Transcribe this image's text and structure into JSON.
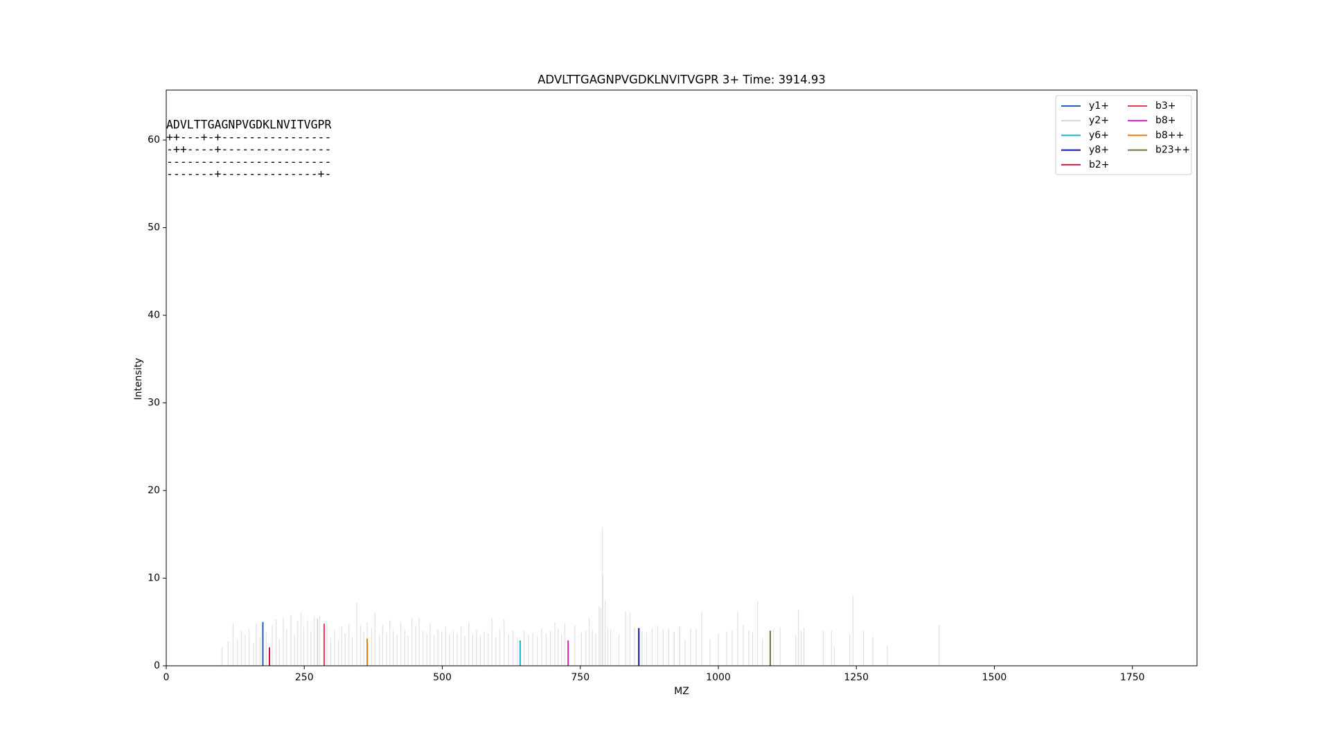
{
  "chart_data": {
    "type": "spectrum",
    "title": "ADVLTTGAGNPVGDKLNVITVGPR  3+ Time: 3914.93",
    "x_label": "MZ",
    "y_label": "Intensity",
    "xlim": [
      0,
      1867
    ],
    "ylim": [
      0,
      65.7
    ],
    "xticks": [
      0,
      250,
      500,
      750,
      1000,
      1250,
      1500,
      1750
    ],
    "yticks": [
      0,
      10,
      20,
      30,
      40,
      50,
      60
    ],
    "legend": "upper right",
    "annotation": [
      "ADVLTTGAGNPVGDKLNVITVGPR",
      "++---+-+----------------",
      "-++----+----------------",
      "------------------------",
      "-------+--------------+-"
    ],
    "peaks": {
      "color": "#e2e2e2",
      "x": [
        101,
        112,
        121,
        129,
        136,
        143,
        150,
        158,
        163,
        170,
        181,
        192,
        199,
        205,
        212,
        218,
        226,
        232,
        238,
        244,
        249,
        256,
        262,
        268,
        278,
        291,
        298,
        305,
        312,
        318,
        324,
        331,
        337,
        345,
        352,
        358,
        364,
        372,
        378,
        386,
        392,
        399,
        405,
        411,
        418,
        425,
        432,
        438,
        445,
        452,
        458,
        465,
        472,
        478,
        485,
        492,
        499,
        506,
        513,
        520,
        527,
        534,
        541,
        548,
        555,
        562,
        569,
        576,
        583,
        590,
        597,
        604,
        612,
        620,
        628,
        636,
        648,
        656,
        664,
        672,
        680,
        688,
        696,
        704,
        710,
        716,
        722,
        740,
        752,
        760,
        766,
        772,
        778,
        784,
        787,
        790,
        791,
        795,
        800,
        805,
        820,
        832,
        840,
        848,
        862,
        870,
        880,
        890,
        900,
        910,
        920,
        930,
        940,
        950,
        960,
        970,
        985,
        1000,
        1015,
        1025,
        1035,
        1045,
        1055,
        1062,
        1071,
        1080,
        1100,
        1112,
        1140,
        1145,
        1150,
        1155,
        1190,
        1205,
        1210,
        1238,
        1244,
        1263,
        1280,
        1306,
        1400
      ],
      "values": [
        2.1,
        2.8,
        4.9,
        3.0,
        4.0,
        3.5,
        4.2,
        2.6,
        4.8,
        3.3,
        3.8,
        4.6,
        5.3,
        3.1,
        5.5,
        4.2,
        5.8,
        3.6,
        5.1,
        6.0,
        4.4,
        5.2,
        3.9,
        5.6,
        5.7,
        4.9,
        3.2,
        4.1,
        3.0,
        4.5,
        3.7,
        4.8,
        3.3,
        7.2,
        4.6,
        3.9,
        5.0,
        4.3,
        6.0,
        3.5,
        4.7,
        3.8,
        5.2,
        4.0,
        3.6,
        5.0,
        4.1,
        3.4,
        5.4,
        4.6,
        5.5,
        4.0,
        3.7,
        4.9,
        3.5,
        4.2,
        3.9,
        4.4,
        3.6,
        4.0,
        3.8,
        4.5,
        3.4,
        5.0,
        3.6,
        4.1,
        3.5,
        3.9,
        3.7,
        5.4,
        3.3,
        4.2,
        5.3,
        3.6,
        4.0,
        3.2,
        4.0,
        3.5,
        3.8,
        3.4,
        4.3,
        3.7,
        4.0,
        5.0,
        4.2,
        3.6,
        4.9,
        4.6,
        3.8,
        4.0,
        5.5,
        4.1,
        3.7,
        6.8,
        6.6,
        15.8,
        10.4,
        7.4,
        4.3,
        4.1,
        3.5,
        6.2,
        6.0,
        4.4,
        4.0,
        3.8,
        4.3,
        4.6,
        4.2,
        4.3,
        3.9,
        4.5,
        3.0,
        4.3,
        4.2,
        6.2,
        3.1,
        3.7,
        3.9,
        4.1,
        6.2,
        4.7,
        4.0,
        3.8,
        7.4,
        3.1,
        4.2,
        4.3,
        3.5,
        6.4,
        4.0,
        4.4,
        4.0,
        4.0,
        2.2,
        3.6,
        8.0,
        4.0,
        3.3,
        2.3,
        4.7
      ]
    },
    "series": [
      {
        "name": "y1+",
        "color": "#1f5fbf",
        "x": [
          175
        ],
        "values": [
          5.0
        ]
      },
      {
        "name": "y2+",
        "color": "#cfd8dc",
        "x": [
          274
        ],
        "values": [
          5.4
        ]
      },
      {
        "name": "y6+",
        "color": "#18aed6",
        "x": [
          641
        ],
        "values": [
          2.9
        ]
      },
      {
        "name": "y8+",
        "color": "#0a14a0",
        "x": [
          856
        ],
        "values": [
          4.3
        ]
      },
      {
        "name": "b2+",
        "color": "#d0103a",
        "x": [
          187
        ],
        "values": [
          2.1
        ]
      },
      {
        "name": "b3+",
        "color": "#ee3658",
        "x": [
          286
        ],
        "values": [
          4.8
        ]
      },
      {
        "name": "b8+",
        "color": "#d020c0",
        "x": [
          728
        ],
        "values": [
          2.9
        ]
      },
      {
        "name": "b8++",
        "color": "#e07b10",
        "x": [
          364
        ],
        "values": [
          3.1
        ]
      },
      {
        "name": "b23++",
        "color": "#6f6f40",
        "x": [
          1094
        ],
        "values": [
          4.0
        ]
      }
    ]
  }
}
